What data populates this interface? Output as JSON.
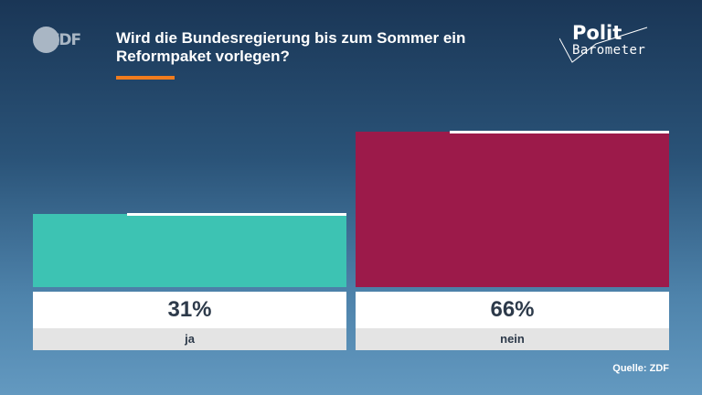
{
  "brand": {
    "zdf_logo": "ZDF",
    "polit_line1": "Polit",
    "polit_line2": "Barometer"
  },
  "header": {
    "title": "Wird die Bundesregierung bis zum Sommer ein Reformpaket vorlegen?"
  },
  "colors": {
    "accent": "#f07c1e",
    "ja": "#3dc3b3",
    "nein": "#9c1a4a"
  },
  "chart_data": {
    "type": "bar",
    "title": "Wird die Bundesregierung bis zum Sommer ein Reformpaket vorlegen?",
    "categories": [
      "ja",
      "nein"
    ],
    "values": [
      31,
      66
    ],
    "previous_values": [
      28,
      64
    ],
    "labels": [
      "31%",
      "66%"
    ],
    "colors": [
      "#3dc3b3",
      "#9c1a4a"
    ],
    "ylim": [
      0,
      66
    ],
    "grid": false,
    "legend": "none"
  },
  "footer": {
    "source": "Quelle: ZDF"
  }
}
